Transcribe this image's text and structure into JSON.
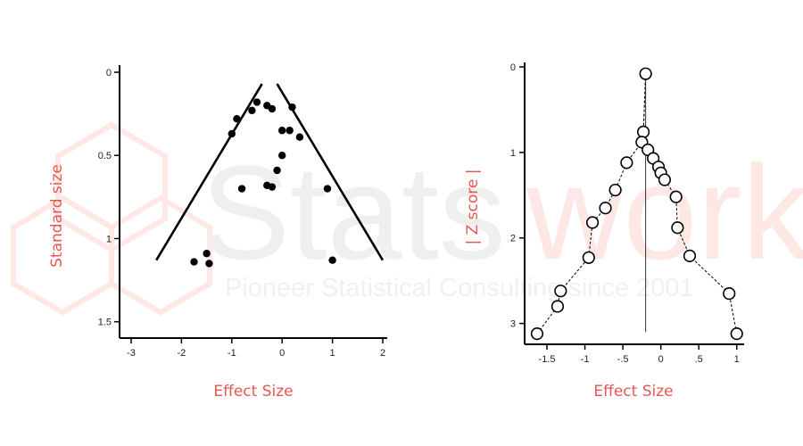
{
  "watermark": {
    "brand_left": "Stats",
    "brand_right": "work",
    "tagline": "Pioneer Statistical Consulting since 2001"
  },
  "colors": {
    "axis_title": "#e8574f",
    "ink": "#000000",
    "watermark_gray": "#efefef",
    "watermark_pink": "#fde8e6"
  },
  "chart_data": [
    {
      "type": "scatter",
      "title": "",
      "xlabel": "Effect Size",
      "ylabel": "Standard size",
      "xlim": [
        -3,
        2
      ],
      "ylim": [
        1.55,
        0
      ],
      "y_reversed": true,
      "xticks": [
        -3,
        -2,
        -1,
        0,
        1,
        2
      ],
      "xtick_labels": [
        "-3",
        "-2",
        "-1",
        "0",
        "1",
        "2"
      ],
      "yticks": [
        0,
        0.5,
        1,
        1.5
      ],
      "ytick_labels": [
        "0",
        "0.5",
        "1",
        "1.5"
      ],
      "funnel_lines": [
        {
          "x": [
            -0.4,
            -2.5
          ],
          "y": [
            0.07,
            1.13
          ]
        },
        {
          "x": [
            -0.1,
            2.0
          ],
          "y": [
            0.07,
            1.13
          ]
        }
      ],
      "points": [
        {
          "x": -0.5,
          "y": 0.18
        },
        {
          "x": -0.3,
          "y": 0.2
        },
        {
          "x": -0.2,
          "y": 0.22
        },
        {
          "x": 0.2,
          "y": 0.21
        },
        {
          "x": -0.6,
          "y": 0.23
        },
        {
          "x": -0.9,
          "y": 0.28
        },
        {
          "x": -1.0,
          "y": 0.37
        },
        {
          "x": 0.0,
          "y": 0.35
        },
        {
          "x": 0.15,
          "y": 0.35
        },
        {
          "x": 0.35,
          "y": 0.39
        },
        {
          "x": 0.0,
          "y": 0.5
        },
        {
          "x": -0.1,
          "y": 0.59
        },
        {
          "x": -0.3,
          "y": 0.68
        },
        {
          "x": -0.2,
          "y": 0.69
        },
        {
          "x": -0.8,
          "y": 0.7
        },
        {
          "x": 0.9,
          "y": 0.7
        },
        {
          "x": -1.5,
          "y": 1.09
        },
        {
          "x": -1.75,
          "y": 1.14
        },
        {
          "x": -1.45,
          "y": 1.15
        },
        {
          "x": 1.0,
          "y": 1.13
        }
      ],
      "grid": false
    },
    {
      "type": "line",
      "title": "",
      "xlabel": "Effect Size",
      "ylabel": "| Z score |",
      "xlim": [
        -1.7,
        1.05
      ],
      "ylim": [
        3.15,
        0
      ],
      "y_reversed": true,
      "xticks": [
        -1.5,
        -1,
        -0.5,
        0,
        0.5,
        1
      ],
      "xtick_labels": [
        "-1.5",
        "-1",
        "-.5",
        "0",
        ".5",
        "1"
      ],
      "yticks": [
        0,
        1,
        2,
        3
      ],
      "ytick_labels": [
        "0",
        "1",
        "2",
        "3"
      ],
      "vertical_line_x": -0.2,
      "vertical_line_y": [
        0.08,
        3.1
      ],
      "left_branch": [
        {
          "x": -0.2,
          "y": 0.08
        },
        {
          "x": -0.23,
          "y": 0.76
        },
        {
          "x": -0.25,
          "y": 0.88
        },
        {
          "x": -0.45,
          "y": 1.12
        },
        {
          "x": -0.6,
          "y": 1.44
        },
        {
          "x": -0.73,
          "y": 1.65
        },
        {
          "x": -0.9,
          "y": 1.82
        },
        {
          "x": -0.95,
          "y": 2.23
        },
        {
          "x": -1.32,
          "y": 2.62
        },
        {
          "x": -1.36,
          "y": 2.8
        },
        {
          "x": -1.63,
          "y": 3.12
        }
      ],
      "right_branch": [
        {
          "x": -0.2,
          "y": 0.08
        },
        {
          "x": -0.23,
          "y": 0.76
        },
        {
          "x": -0.17,
          "y": 0.97
        },
        {
          "x": -0.1,
          "y": 1.07
        },
        {
          "x": -0.03,
          "y": 1.17
        },
        {
          "x": 0.0,
          "y": 1.24
        },
        {
          "x": 0.05,
          "y": 1.32
        },
        {
          "x": 0.2,
          "y": 1.52
        },
        {
          "x": 0.22,
          "y": 1.88
        },
        {
          "x": 0.38,
          "y": 2.21
        },
        {
          "x": 0.9,
          "y": 2.65
        },
        {
          "x": 1.0,
          "y": 3.12
        }
      ],
      "grid": false
    }
  ]
}
